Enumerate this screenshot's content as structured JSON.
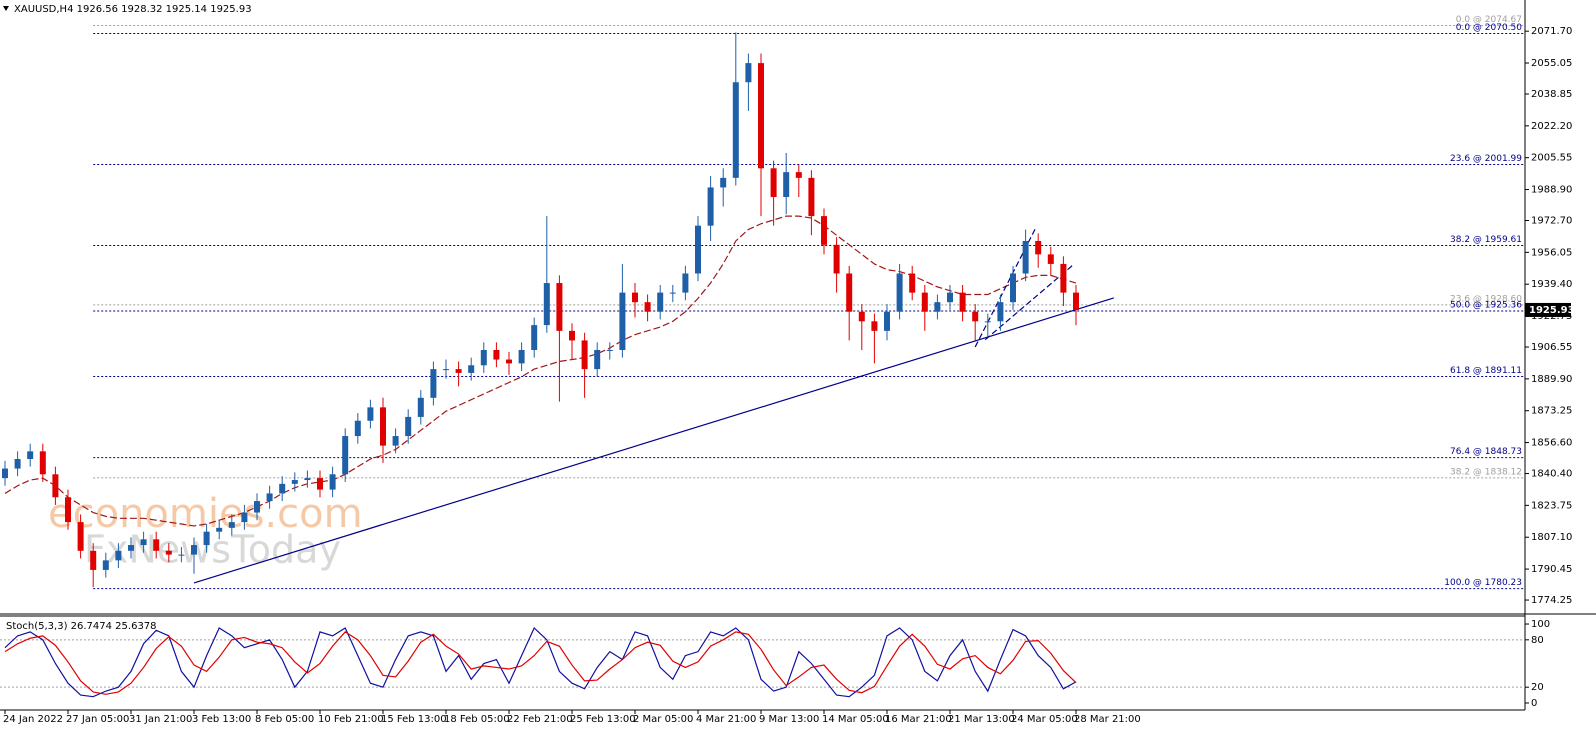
{
  "chart_data": [
    {
      "type": "candlestick",
      "title": "XAUUSD,H4  1926.56 1928.32 1925.14 1925.93",
      "categories": [
        "24 Jan 2022",
        null,
        null,
        null,
        null,
        "27 Jan 05:00",
        null,
        null,
        null,
        null,
        "31 Jan 21:00",
        null,
        null,
        null,
        null,
        "3 Feb 13:00",
        null,
        null,
        null,
        null,
        "8 Feb 05:00",
        null,
        null,
        null,
        null,
        "10 Feb 21:00",
        null,
        null,
        null,
        null,
        "15 Feb 13:00",
        null,
        null,
        null,
        null,
        "18 Feb 05:00",
        null,
        null,
        null,
        null,
        "22 Feb 21:00",
        null,
        null,
        null,
        null,
        "25 Feb 13:00",
        null,
        null,
        null,
        null,
        "2 Mar 05:00",
        null,
        null,
        null,
        null,
        "4 Mar 21:00",
        null,
        null,
        null,
        null,
        "9 Mar 13:00",
        null,
        null,
        null,
        null,
        "14 Mar 05:00",
        null,
        null,
        null,
        null,
        "16 Mar 21:00",
        null,
        null,
        null,
        null,
        "21 Mar 13:00",
        null,
        null,
        null,
        null,
        "24 Mar 05:00",
        null,
        null,
        null,
        null,
        "28 Mar 21:00"
      ],
      "open": [
        1838,
        1843,
        1848,
        1852,
        1840,
        1828,
        1815,
        1800,
        1790,
        1795,
        1800,
        1803,
        1806,
        1800,
        1798,
        1798,
        1803,
        1810,
        1812,
        1815,
        1820,
        1826,
        1830,
        1835,
        1837,
        1838,
        1832,
        1840,
        1860,
        1868,
        1875,
        1855,
        1860,
        1870,
        1880,
        1895,
        1895,
        1893,
        1897,
        1905,
        1900,
        1898,
        1905,
        1918,
        1940,
        1915,
        1910,
        1895,
        1905,
        1905,
        1935,
        1930,
        1925,
        1935,
        1935,
        1945,
        1970,
        1990,
        1995,
        2045,
        2055,
        2000,
        1985,
        1998,
        1995,
        1975,
        1960,
        1945,
        1925,
        1920,
        1915,
        1925,
        1945,
        1935,
        1925,
        1930,
        1935,
        1925,
        1920,
        1920,
        1930,
        1945,
        1962,
        1955,
        1950,
        1935
      ],
      "high": [
        1847,
        1852,
        1856,
        1856,
        1844,
        1832,
        1819,
        1804,
        1799,
        1804,
        1807,
        1810,
        1810,
        1804,
        1802,
        1807,
        1814,
        1816,
        1819,
        1824,
        1830,
        1834,
        1839,
        1841,
        1842,
        1842,
        1844,
        1864,
        1872,
        1879,
        1880,
        1864,
        1874,
        1884,
        1899,
        1900,
        1899,
        1901,
        1909,
        1909,
        1904,
        1909,
        1922,
        1975,
        1944,
        1919,
        1914,
        1909,
        1909,
        1950,
        1940,
        1934,
        1939,
        1939,
        1949,
        1975,
        1996,
        2000,
        2071,
        2060,
        2060,
        2004,
        2008,
        2002,
        1999,
        1979,
        1964,
        1949,
        1929,
        1924,
        1929,
        1950,
        1949,
        1939,
        1934,
        1939,
        1939,
        1929,
        1924,
        1934,
        1949,
        1968,
        1966,
        1959,
        1954,
        1939
      ],
      "low": [
        1834,
        1839,
        1844,
        1836,
        1824,
        1811,
        1796,
        1781,
        1786,
        1791,
        1796,
        1799,
        1796,
        1794,
        1794,
        1788,
        1799,
        1806,
        1808,
        1811,
        1816,
        1822,
        1826,
        1831,
        1833,
        1828,
        1828,
        1836,
        1856,
        1864,
        1846,
        1851,
        1856,
        1866,
        1876,
        1890,
        1886,
        1889,
        1893,
        1896,
        1892,
        1894,
        1901,
        1914,
        1878,
        1900,
        1880,
        1891,
        1900,
        1901,
        1922,
        1920,
        1921,
        1930,
        1931,
        1941,
        1962,
        1980,
        1991,
        2030,
        1975,
        1970,
        1976,
        1985,
        1965,
        1955,
        1935,
        1910,
        1905,
        1898,
        1910,
        1921,
        1931,
        1915,
        1921,
        1926,
        1920,
        1910,
        1912,
        1915,
        1926,
        1941,
        1948,
        1944,
        1928,
        1918
      ],
      "close": [
        1843,
        1848,
        1852,
        1840,
        1828,
        1815,
        1800,
        1790,
        1795,
        1800,
        1803,
        1806,
        1800,
        1798,
        1798,
        1803,
        1810,
        1812,
        1815,
        1820,
        1826,
        1830,
        1835,
        1837,
        1838,
        1832,
        1840,
        1860,
        1868,
        1875,
        1855,
        1860,
        1870,
        1880,
        1895,
        1895,
        1893,
        1897,
        1905,
        1900,
        1898,
        1905,
        1918,
        1940,
        1915,
        1910,
        1895,
        1905,
        1905,
        1935,
        1930,
        1925,
        1935,
        1935,
        1945,
        1970,
        1990,
        1995,
        2045,
        2055,
        2000,
        1985,
        1998,
        1995,
        1975,
        1960,
        1945,
        1925,
        1920,
        1915,
        1925,
        1945,
        1935,
        1925,
        1930,
        1935,
        1925,
        1920,
        1920,
        1930,
        1945,
        1962,
        1955,
        1950,
        1935,
        1925.93
      ],
      "up_color": "#1f5fa8",
      "down_color": "#e00000",
      "ma": {
        "color": "#a01818",
        "values": [
          1830,
          1834,
          1837,
          1838,
          1834,
          1828,
          1824,
          1820,
          1818,
          1817,
          1817,
          1817,
          1816,
          1815,
          1814,
          1813,
          1814,
          1816,
          1818,
          1820,
          1823,
          1826,
          1830,
          1833,
          1835,
          1836,
          1837,
          1840,
          1844,
          1848,
          1850,
          1853,
          1858,
          1863,
          1868,
          1873,
          1876,
          1879,
          1882,
          1885,
          1888,
          1891,
          1895,
          1897,
          1899,
          1900,
          1901,
          1903,
          1906,
          1910,
          1913,
          1915,
          1917,
          1920,
          1925,
          1932,
          1940,
          1950,
          1962,
          1968,
          1971,
          1973,
          1975,
          1975,
          1974,
          1970,
          1965,
          1960,
          1955,
          1950,
          1947,
          1946,
          1944,
          1941,
          1938,
          1936,
          1934,
          1934,
          1934,
          1937,
          1940,
          1943,
          1944,
          1944,
          1942,
          1940
        ]
      },
      "ylim": [
        1768,
        2088
      ],
      "yticks": [
        {
          "value": 2071.7,
          "label": "2071.70"
        },
        2055.05,
        2038.85,
        {
          "value": 2022.2,
          "label": "2022.20"
        },
        2005.55,
        {
          "value": 1988.9,
          "label": "1988.90"
        },
        {
          "value": 1972.7,
          "label": "1972.70"
        },
        1956.05,
        {
          "value": 1939.4,
          "label": "1939.40"
        },
        1922.75,
        1906.55,
        {
          "value": 1889.9,
          "label": "1889.90"
        },
        1873.25,
        {
          "value": 1856.6,
          "label": "1856.60"
        },
        {
          "value": 1840.4,
          "label": "1840.40"
        },
        1823.75,
        {
          "value": 1807.1,
          "label": "1807.10"
        },
        1790.45,
        1774.25
      ],
      "fib_levels": [
        {
          "label": "0.0 @ 2074.67",
          "value": 2074.67,
          "color": "#a0a0a0"
        },
        {
          "label": "0.0 @ 2070.50",
          "value": 2070.5,
          "color": "#00008b"
        },
        {
          "label": "23.6 @ 2001.99",
          "value": 2001.99,
          "color": "#00008b"
        },
        {
          "label": "38.2 @ 1959.61",
          "value": 1959.61,
          "color": "#00008b"
        },
        {
          "label": "23.6 @ 1928.60",
          "value": 1928.6,
          "color": "#a0a0a0"
        },
        {
          "label": "50.0 @ 1925.36",
          "value": 1925.36,
          "color": "#00008b"
        },
        {
          "label": "61.8 @ 1891.11",
          "value": 1891.11,
          "color": "#00008b"
        },
        {
          "label": "76.4 @ 1848.73",
          "value": 1848.73,
          "color": "#00008b"
        },
        {
          "label": "38.2 @ 1838.12",
          "value": 1838.12,
          "color": "#a0a0a0"
        },
        {
          "label": "100.0 @ 1780.23",
          "value": 1780.23,
          "color": "#00008b"
        }
      ],
      "trendlines": [
        {
          "x": [
            15,
            88
          ],
          "values": [
            1783.2,
            1932.2
          ],
          "color": "#00008b",
          "dashed": false
        },
        {
          "x": [
            77,
            81.8
          ],
          "values": [
            1906.6,
            1968.8
          ],
          "color": "#00008b",
          "dashed": true
        },
        {
          "x": [
            77.8,
            84.7
          ],
          "values": [
            1910.4,
            1949.1
          ],
          "color": "#00008b",
          "dashed": true
        }
      ],
      "last_price": 1925.93,
      "watermarks": [
        "economies.com",
        "FxNewsToday"
      ]
    },
    {
      "type": "line",
      "title": "Stoch(5,3,3) 26.7474 25.6378",
      "series": [
        {
          "color": "#1010a0",
          "values": [
            70,
            85,
            90,
            80,
            50,
            25,
            10,
            8,
            15,
            20,
            40,
            75,
            92,
            85,
            40,
            20,
            60,
            95,
            85,
            70,
            75,
            80,
            55,
            20,
            40,
            90,
            85,
            95,
            60,
            25,
            20,
            55,
            85,
            90,
            85,
            40,
            60,
            30,
            50,
            55,
            25,
            60,
            95,
            80,
            40,
            25,
            18,
            45,
            65,
            55,
            90,
            85,
            45,
            30,
            60,
            65,
            90,
            85,
            95,
            80,
            30,
            15,
            20,
            65,
            50,
            30,
            10,
            8,
            20,
            35,
            85,
            95,
            80,
            40,
            28,
            60,
            80,
            40,
            15,
            55,
            93,
            85,
            60,
            45,
            18,
            26.7474
          ]
        },
        {
          "color": "#e00000",
          "values": [
            65,
            75,
            82,
            85,
            73,
            52,
            28,
            14,
            11,
            14,
            25,
            45,
            69,
            84,
            72,
            48,
            40,
            58,
            80,
            83,
            77,
            75,
            70,
            52,
            38,
            50,
            72,
            90,
            80,
            60,
            35,
            33,
            53,
            77,
            87,
            72,
            62,
            43,
            47,
            45,
            43,
            47,
            60,
            78,
            72,
            48,
            28,
            29,
            43,
            55,
            70,
            77,
            73,
            53,
            45,
            52,
            72,
            80,
            90,
            87,
            68,
            42,
            22,
            33,
            45,
            48,
            30,
            16,
            13,
            21,
            47,
            72,
            87,
            72,
            49,
            43,
            56,
            60,
            45,
            37,
            54,
            78,
            79,
            63,
            41,
            25.6378
          ]
        }
      ],
      "ylim": [
        -8.9,
        108.9
      ],
      "yticks": [
        0,
        20,
        80,
        100
      ],
      "grid": true
    }
  ]
}
